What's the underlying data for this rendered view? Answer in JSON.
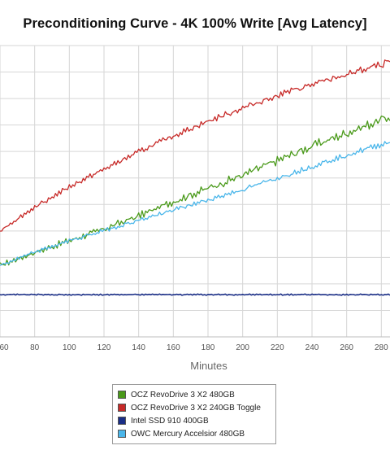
{
  "chart_data": {
    "type": "line",
    "title": "Preconditioning Curve - 4K 100% Write [Avg Latency]",
    "xlabel": "Minutes",
    "ylabel": "",
    "x_ticks": [
      60,
      80,
      100,
      120,
      140,
      160,
      180,
      200,
      220,
      240,
      260,
      280
    ],
    "xlim": [
      60,
      285
    ],
    "ylim": [
      0,
      1
    ],
    "grid": true,
    "legend_position": "bottom",
    "series": [
      {
        "name": "OCZ RevoDrive 3 X2 480GB",
        "color": "#4a9a1a",
        "x": [
          60,
          80,
          100,
          120,
          140,
          160,
          180,
          200,
          220,
          240,
          260,
          280,
          285
        ],
        "values": [
          0.245,
          0.29,
          0.33,
          0.37,
          0.415,
          0.465,
          0.51,
          0.555,
          0.605,
          0.655,
          0.7,
          0.745,
          0.755
        ],
        "noise": 0.007
      },
      {
        "name": "OCZ RevoDrive 3 X2 240GB Toggle",
        "color": "#c72a28",
        "x": [
          60,
          80,
          100,
          120,
          140,
          160,
          180,
          200,
          220,
          240,
          260,
          280,
          285
        ],
        "values": [
          0.365,
          0.445,
          0.515,
          0.575,
          0.635,
          0.69,
          0.74,
          0.785,
          0.83,
          0.865,
          0.9,
          0.935,
          0.945
        ],
        "noise": 0.005
      },
      {
        "name": "Intel SSD 910 400GB",
        "color": "#1a2e86",
        "x": [
          60,
          120,
          180,
          240,
          285
        ],
        "values": [
          0.145,
          0.145,
          0.145,
          0.145,
          0.145
        ],
        "noise": 0.0015
      },
      {
        "name": "OWC Mercury Accelsior 480GB",
        "color": "#4ab6ea",
        "x": [
          60,
          80,
          100,
          120,
          140,
          160,
          180,
          200,
          220,
          240,
          260,
          280,
          285
        ],
        "values": [
          0.245,
          0.29,
          0.33,
          0.365,
          0.4,
          0.435,
          0.47,
          0.505,
          0.545,
          0.585,
          0.625,
          0.66,
          0.67
        ],
        "noise": 0.004
      }
    ]
  }
}
